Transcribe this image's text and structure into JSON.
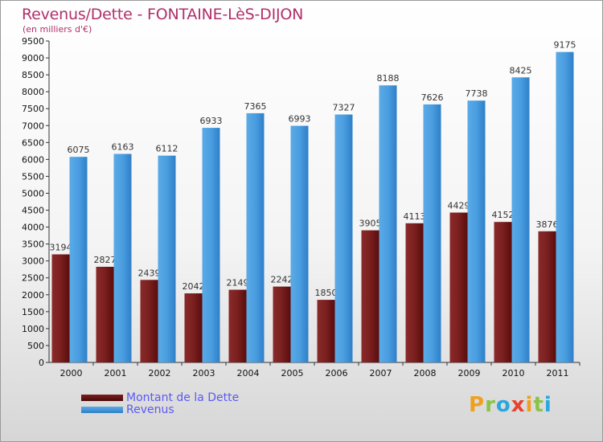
{
  "chart_data": {
    "type": "bar",
    "title": "Revenus/Dette - FONTAINE-LèS-DIJON",
    "subtitle": "(en milliers d'€)",
    "categories": [
      "2000",
      "2001",
      "2002",
      "2003",
      "2004",
      "2005",
      "2006",
      "2007",
      "2008",
      "2009",
      "2010",
      "2011"
    ],
    "series": [
      {
        "name": "Montant de la Dette",
        "color": "#6b1414",
        "values": [
          3194,
          2827,
          2439,
          2042,
          2149,
          2242,
          1850,
          3905,
          4113,
          4429,
          4152,
          3876
        ]
      },
      {
        "name": "Revenus",
        "color": "#3f95dc",
        "values": [
          6075,
          6163,
          6112,
          6933,
          7365,
          6993,
          7327,
          8188,
          7626,
          7738,
          8425,
          9175
        ]
      }
    ],
    "ylim": [
      0,
      9500
    ],
    "ytick_step": 500,
    "grid": false,
    "legend_position": "bottom-left"
  },
  "logo": {
    "letters": [
      {
        "char": "P",
        "color": "#f0a020"
      },
      {
        "char": "r",
        "color": "#8bc34a"
      },
      {
        "char": "o",
        "color": "#29a8e0"
      },
      {
        "char": "x",
        "color": "#e84030"
      },
      {
        "char": "i",
        "color": "#f0a020"
      },
      {
        "char": "t",
        "color": "#8bc34a"
      },
      {
        "char": "i",
        "color": "#29a8e0"
      }
    ]
  }
}
